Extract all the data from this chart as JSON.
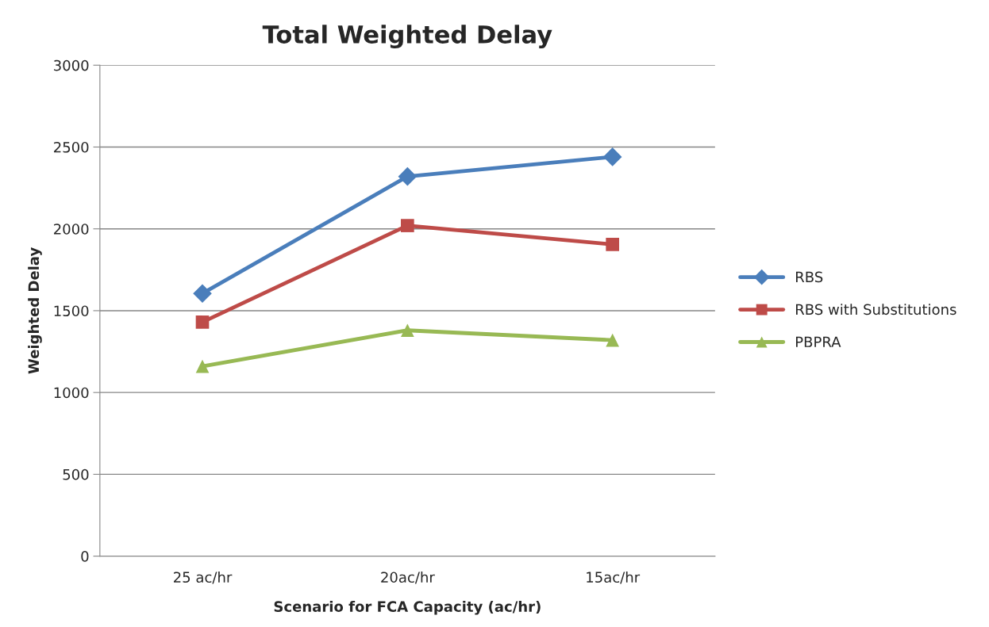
{
  "chart_data": {
    "type": "line",
    "title": "Total Weighted Delay",
    "xlabel": "Scenario for FCA Capacity (ac/hr)",
    "ylabel": "Weighted Delay",
    "categories": [
      "25 ac/hr",
      "20ac/hr",
      "15ac/hr"
    ],
    "series": [
      {
        "name": "RBS",
        "color": "#4a7ebb",
        "marker": "diamond",
        "values": [
          1605,
          2320,
          2440
        ]
      },
      {
        "name": "RBS with Substitutions",
        "color": "#be4b48",
        "marker": "square",
        "values": [
          1430,
          2020,
          1905
        ]
      },
      {
        "name": "PBPRA",
        "color": "#98b954",
        "marker": "triangle",
        "values": [
          1160,
          1380,
          1320
        ]
      }
    ],
    "ylim": [
      0,
      3000
    ],
    "yticks": [
      0,
      500,
      1000,
      1500,
      2000,
      2500,
      3000
    ],
    "grid": "y",
    "legend": "right",
    "line_style": "solid"
  }
}
